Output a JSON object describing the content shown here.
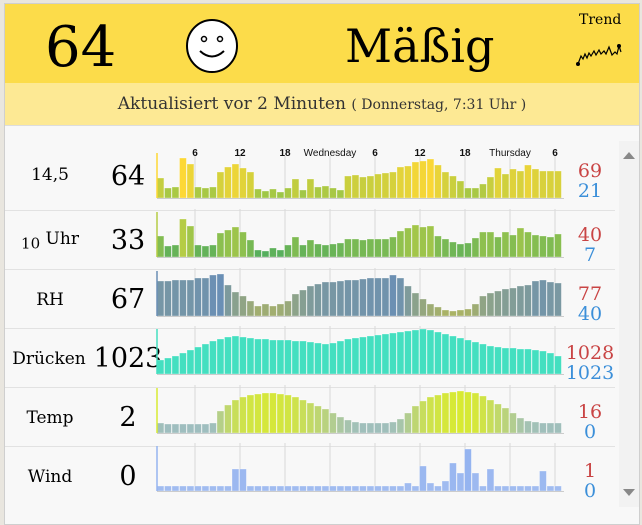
{
  "header": {
    "aqi": "64",
    "status": "Mäßig",
    "trend_label": "Trend",
    "mood_icon": "smiley-icon"
  },
  "updated": {
    "text": "Aktualisiert vor 2 Minuten",
    "detail": "( Donnerstag, 7:31 Uhr )"
  },
  "time_axis": [
    "6",
    "12",
    "18",
    "Wednesday",
    "6",
    "12",
    "18",
    "Thursday",
    "6"
  ],
  "rows": [
    {
      "label": "14,5",
      "value": "64",
      "max": "69",
      "min": "21",
      "colors": [
        "#8bc34a",
        "#fdd835"
      ],
      "series": [
        20,
        10,
        11,
        40,
        34,
        11,
        10,
        11,
        26,
        31,
        34,
        30,
        26,
        9,
        7,
        9,
        6,
        10,
        19,
        8,
        19,
        11,
        12,
        10,
        8,
        22,
        23,
        21,
        22,
        24,
        25,
        26,
        31,
        32,
        36,
        37,
        39,
        33,
        26,
        22,
        17,
        10,
        10,
        14,
        21,
        30,
        24,
        29,
        27,
        33,
        29,
        27,
        27,
        27
      ]
    },
    {
      "label_sub": "10",
      "label": "Uhr",
      "value": "33",
      "max": "40",
      "min": "7",
      "colors": [
        "#43a861",
        "#b5cc45"
      ],
      "series": [
        21,
        11,
        12,
        38,
        31,
        12,
        11,
        12,
        24,
        27,
        30,
        25,
        17,
        7,
        6,
        9,
        7,
        12,
        20,
        12,
        17,
        13,
        12,
        13,
        14,
        18,
        18,
        17,
        18,
        18,
        18,
        20,
        26,
        29,
        32,
        30,
        31,
        21,
        18,
        15,
        13,
        14,
        19,
        25,
        25,
        20,
        25,
        22,
        29,
        25,
        22,
        21,
        20,
        23
      ]
    },
    {
      "label": "RH",
      "value": "67",
      "max": "77",
      "min": "40",
      "colors": [
        "#b3b85a",
        "#6a8fb5"
      ],
      "series": [
        35,
        35,
        36,
        36,
        36,
        38,
        38,
        41,
        42,
        31,
        24,
        20,
        15,
        10,
        12,
        10,
        12,
        15,
        22,
        26,
        30,
        32,
        34,
        34,
        35,
        36,
        36,
        37,
        38,
        38,
        38,
        41,
        38,
        30,
        23,
        17,
        12,
        9,
        6,
        5,
        6,
        7,
        12,
        20,
        23,
        25,
        27,
        28,
        30,
        31,
        35,
        36,
        34,
        33
      ]
    },
    {
      "label": "Drücken",
      "value": "1023",
      "max": "1028",
      "min": "1023",
      "colors": [
        "#44dfc0",
        "#44dfc0"
      ],
      "series": [
        14,
        16,
        18,
        21,
        24,
        27,
        30,
        33,
        35,
        37,
        38,
        37,
        36,
        35,
        35,
        34,
        34,
        34,
        33,
        33,
        32,
        31,
        30,
        31,
        33,
        35,
        36,
        37,
        38,
        39,
        40,
        41,
        42,
        43,
        44,
        45,
        44,
        42,
        40,
        38,
        36,
        34,
        32,
        30,
        28,
        27,
        26,
        26,
        25,
        25,
        24,
        23,
        21,
        18
      ]
    },
    {
      "label": "Temp",
      "value": "2",
      "max": "16",
      "min": "0",
      "colors": [
        "#8fb2e6",
        "#d8ea32"
      ],
      "series": [
        10,
        9,
        9,
        9,
        9,
        9,
        9,
        10,
        22,
        28,
        33,
        36,
        38,
        39,
        40,
        40,
        39,
        38,
        36,
        33,
        30,
        27,
        24,
        20,
        16,
        13,
        11,
        10,
        10,
        10,
        10,
        11,
        14,
        20,
        27,
        32,
        36,
        38,
        40,
        41,
        42,
        41,
        40,
        37,
        33,
        29,
        25,
        20,
        15,
        12,
        11,
        10,
        10,
        10
      ]
    },
    {
      "label": "Wind",
      "value": "0",
      "max": "1",
      "min": "0",
      "colors": [
        "#a3bdf0",
        "#95b4f0"
      ],
      "series": [
        5,
        5,
        5,
        5,
        5,
        5,
        5,
        5,
        5,
        5,
        22,
        22,
        5,
        5,
        5,
        5,
        5,
        5,
        5,
        5,
        5,
        5,
        5,
        5,
        5,
        5,
        5,
        5,
        5,
        5,
        5,
        5,
        5,
        8,
        5,
        25,
        8,
        5,
        10,
        28,
        18,
        42,
        18,
        5,
        22,
        5,
        5,
        5,
        5,
        5,
        5,
        20,
        5,
        5
      ]
    }
  ],
  "scrollbar": {
    "up_icon": "triangle-up-icon",
    "down_icon": "triangle-down-icon"
  }
}
